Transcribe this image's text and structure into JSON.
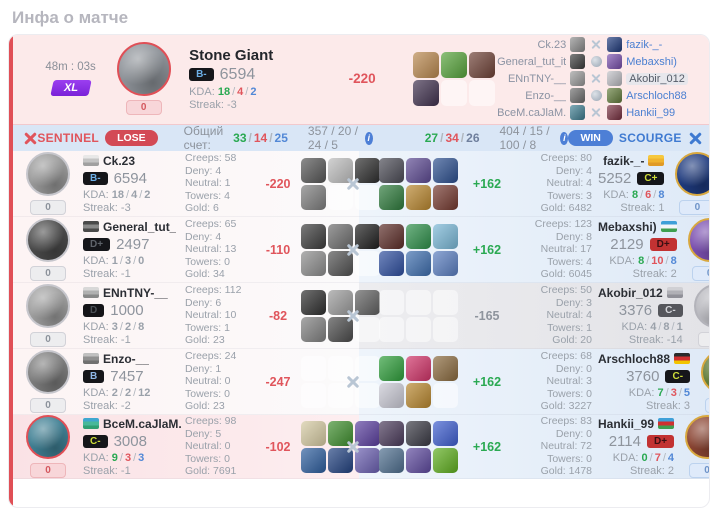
{
  "title": "Инфа о матче",
  "labels": {
    "kda": "KDA:",
    "streak": "Streak:"
  },
  "summary": {
    "duration": "48m : 03s",
    "mode": "XL",
    "games": "0",
    "hero_name": "Stone Giant",
    "avatar_color": "#8d9298",
    "ring": "#e04f56",
    "rank": "B-",
    "rank_color": "#6db0e8",
    "rank_bg": "#15161a",
    "mmr": "6594",
    "kda": [
      "18",
      "4",
      "2"
    ],
    "kda_colors": [
      "#2aa952",
      "#e0555c",
      "#5288d6"
    ],
    "streak": "-3",
    "networth": "-220",
    "networth_color": "#e0555c",
    "items": [
      "#b9884f",
      "#57a33b",
      "#6e4136",
      "#40314e",
      null,
      null
    ]
  },
  "mini": [
    {
      "left": "Ck.23",
      "lcolor": "#8e8e8e",
      "swords": true,
      "globe": false,
      "rcolor": "#1e3a7e",
      "right": "fazik-_-",
      "hl": ""
    },
    {
      "left": "General_tut_it",
      "lcolor": "#3c3c3c",
      "swords": false,
      "globe": true,
      "rcolor": "#7a4fb0",
      "right": "Mebaxshi)",
      "hl": ""
    },
    {
      "left": "ENnTNY-__",
      "lcolor": "#9c9c9c",
      "swords": true,
      "globe": false,
      "rcolor": "#c2c2c8",
      "right": "Akobir_012",
      "hl": "hl"
    },
    {
      "left": "Enzo-__",
      "lcolor": "#6e6e6e",
      "swords": false,
      "globe": true,
      "rcolor": "#647e3c",
      "right": "Arschloch88",
      "hl": ""
    },
    {
      "left": "BceM.caJlaM.",
      "lcolor": "#3f7f93",
      "swords": true,
      "globe": false,
      "rcolor": "#7a3040",
      "right": "Hankii_99",
      "hl": ""
    }
  ],
  "header": {
    "left_team": "SENTINEL",
    "left_result": "LOSE",
    "score_label": "Общий счет:",
    "left_kda": [
      "33",
      "14",
      "25"
    ],
    "left_extra": "357 / 20 / 24 / 5",
    "right_kda": [
      "27",
      "34",
      "26"
    ],
    "right_extra": "404 / 15 / 100 / 8",
    "right_result": "WIN",
    "right_team": "SCOURGE"
  },
  "rows": [
    {
      "left": {
        "tone": "",
        "name": "Ck.23",
        "flag": [
          "#e8e8e8",
          "#c4c4c4",
          "#a0a0a0"
        ],
        "avatar": "#9a9a9a",
        "ring": "#c6c6cc",
        "rank": "B-",
        "rank_color": "#6db0e8",
        "rank_bg": "#15161a",
        "mmr": "6594",
        "kda": [
          "18",
          "4",
          "2"
        ],
        "kda_colors": [
          "#9aa1aa",
          "#9aa1aa",
          "#9aa1aa"
        ],
        "streak": "-3",
        "games": "0",
        "pill": "pill-gray",
        "stats": [
          "Creeps: 58",
          "Deny: 4",
          "Neutral: 1",
          "Towers: 4",
          "Gold: 6"
        ],
        "net": "-220",
        "net_color": "#e0555c",
        "items": [
          "#565656",
          "#bdbdbd",
          "#2d2d2d",
          "#7d7d7d",
          null,
          null
        ]
      },
      "right": {
        "tone": "",
        "items": [
          "#4b4b55",
          "#5d4a92",
          "#2c4f8e",
          "#2e7a3c",
          "#b8862f",
          "#74392f"
        ],
        "net": "+162",
        "net_color": "#2aa952",
        "stats": [
          "Creeps: 80",
          "Deny: 4",
          "Neutral: 4",
          "Towers: 3",
          "Gold: 6482"
        ],
        "name": "fazik-_-",
        "flag": [
          "#f6c83e",
          "#f0b32e",
          "#e09a26"
        ],
        "rank": "C+",
        "rank_color": "#cddc39",
        "rank_bg": "#15161a",
        "mmr": "5252",
        "kda": [
          "8",
          "6",
          "8"
        ],
        "kda_colors": [
          "#2aa952",
          "#e0555c",
          "#5288d6"
        ],
        "streak": "1",
        "games": "0",
        "pill": "pill-blue",
        "avatar": "#1e3a7e",
        "ring": "#d8a83f"
      }
    },
    {
      "left": {
        "tone": "",
        "name": "General_tut_",
        "flag": [
          "#4a4a4a",
          "#8a8a8a",
          "#4a4a4a"
        ],
        "avatar": "#4a4a4a",
        "ring": "#c6c6cc",
        "rank": "D+",
        "rank_color": "#5f646b",
        "rank_bg": "#15161a",
        "mmr": "2497",
        "kda": [
          "1",
          "3",
          "0"
        ],
        "kda_colors": [
          "#9aa1aa",
          "#9aa1aa",
          "#9aa1aa"
        ],
        "streak": "-1",
        "games": "0",
        "pill": "pill-gray",
        "stats": [
          "Creeps: 65",
          "Deny: 4",
          "Neutral: 13",
          "Towers: 0",
          "Gold: 34"
        ],
        "net": "-110",
        "net_color": "#e0555c",
        "items": [
          "#3c3c3c",
          "#6d6d6d",
          "#1e1e1e",
          "#8c8c8c",
          "#515151",
          null
        ]
      },
      "right": {
        "tone": "",
        "items": [
          "#5c2d28",
          "#2e8f4a",
          "#79b7d6",
          "#2e4e9e",
          "#3e6eae",
          "#5a7ec0"
        ],
        "net": "+162",
        "net_color": "#2aa952",
        "stats": [
          "Creeps: 123",
          "Deny: 8",
          "Neutral: 17",
          "Towers: 4",
          "Gold: 6045"
        ],
        "name": "Mebaxshi)",
        "flag": [
          "#3fa0d8",
          "#f4f6f8",
          "#3f9f4f"
        ],
        "rank": "D+",
        "rank_color": "#3a0f12",
        "rank_bg": "#c23232",
        "mmr": "2129",
        "kda": [
          "8",
          "10",
          "8"
        ],
        "kda_colors": [
          "#2aa952",
          "#e0555c",
          "#5288d6"
        ],
        "streak": "2",
        "games": "0",
        "pill": "pill-blue",
        "avatar": "#7a4fb0",
        "ring": "#d8a83f"
      }
    },
    {
      "left": {
        "tone": "",
        "name": "ENnTNY-__",
        "flag": [
          "#d8d8d8",
          "#b0b0b0",
          "#888888"
        ],
        "avatar": "#9f9f9f",
        "ring": "#c6c6cc",
        "rank": "D",
        "rank_color": "#4a4f55",
        "rank_bg": "#141418",
        "mmr": "1000",
        "kda": [
          "3",
          "2",
          "8"
        ],
        "kda_colors": [
          "#9aa1aa",
          "#9aa1aa",
          "#9aa1aa"
        ],
        "streak": "-1",
        "games": "0",
        "pill": "pill-gray",
        "stats": [
          "Creeps: 112",
          "Deny: 6",
          "Neutral: 10",
          "Towers: 1",
          "Gold: 23"
        ],
        "net": "-82",
        "net_color": "#e0555c",
        "items": [
          "#2e2e2e",
          "#9b9b9b",
          "#606060",
          "#808080",
          "#4b4b4b",
          null
        ]
      },
      "right": {
        "tone": "tone-gray",
        "items": [
          null,
          null,
          null,
          null,
          null,
          null
        ],
        "net": "-165",
        "net_color": "#8e949d",
        "stats": [
          "Creeps: 50",
          "Deny: 3",
          "Neutral: 4",
          "Towers: 1",
          "Gold: 20"
        ],
        "name": "Akobir_012",
        "flag": [
          "#d0d0d4",
          "#b0b0b6",
          "#909098"
        ],
        "rank": "C-",
        "rank_color": "#d4d5da",
        "rank_bg": "#55565c",
        "mmr": "3376",
        "kda": [
          "4",
          "8",
          "1"
        ],
        "kda_colors": [
          "#9aa1aa",
          "#9aa1aa",
          "#9aa1aa"
        ],
        "streak": "-14",
        "games": "0",
        "pill": "pill-gray",
        "avatar": "#b9b9bf",
        "ring": "#b3b3ba"
      }
    },
    {
      "left": {
        "tone": "",
        "name": "Enzo-__",
        "flag": [
          "#c0c0c0",
          "#909090",
          "#707070"
        ],
        "avatar": "#7d7d7d",
        "ring": "#c6c6cc",
        "rank": "B",
        "rank_color": "#8fb8e8",
        "rank_bg": "#15161a",
        "mmr": "7457",
        "kda": [
          "2",
          "2",
          "12"
        ],
        "kda_colors": [
          "#9aa1aa",
          "#9aa1aa",
          "#9aa1aa"
        ],
        "streak": "-2",
        "games": "0",
        "pill": "pill-gray",
        "stats": [
          "Creeps: 24",
          "Deny: 1",
          "Neutral: 0",
          "Towers: 0",
          "Gold: 23"
        ],
        "net": "-247",
        "net_color": "#e0555c",
        "items": [
          null,
          null,
          null,
          null,
          null,
          null
        ]
      },
      "right": {
        "tone": "",
        "items": [
          "#2f9e3b",
          "#d03368",
          "#8a6a3e",
          "#c9c9d4",
          "#b8872f",
          null
        ],
        "net": "+162",
        "net_color": "#2aa952",
        "stats": [
          "Creeps: 68",
          "Deny: 0",
          "Neutral: 3",
          "Towers: 0",
          "Gold: 3227"
        ],
        "name": "Arschloch88",
        "flag": [
          "#2b2b2b",
          "#d03030",
          "#f2c500"
        ],
        "rank": "C-",
        "rank_color": "#cddc39",
        "rank_bg": "#15161a",
        "mmr": "3760",
        "kda": [
          "7",
          "3",
          "5"
        ],
        "kda_colors": [
          "#2aa952",
          "#e0555c",
          "#5288d6"
        ],
        "streak": "3",
        "games": "0",
        "pill": "pill-blue",
        "avatar": "#647e3c",
        "ring": "#d8a83f"
      }
    },
    {
      "left": {
        "tone": "tone-pink",
        "name": "BceM.caJlaM.",
        "flag": [
          "#3fa7cf",
          "#48b89a",
          "#2f9f72"
        ],
        "avatar": "#3f7f93",
        "ring": "#e04f56",
        "rank": "C-",
        "rank_color": "#cddc39",
        "rank_bg": "#15161a",
        "mmr": "3008",
        "kda": [
          "9",
          "3",
          "3"
        ],
        "kda_colors": [
          "#2aa952",
          "#e0555c",
          "#5288d6"
        ],
        "streak": "-1",
        "games": "0",
        "pill": "pill-pink",
        "stats": [
          "Creeps: 98",
          "Deny: 5",
          "Neutral: 0",
          "Towers: 0",
          "Gold: 7691"
        ],
        "net": "-102",
        "net_color": "#e0555c",
        "items": [
          "#d5caa2",
          "#3f8e2e",
          "#5a3f9e",
          "#2e5e9e",
          "#224280",
          "#6a5fb0"
        ]
      },
      "right": {
        "tone": "",
        "items": [
          "#4a3a5a",
          "#3a3a44",
          "#3e5ecf",
          "#4e6e8e",
          "#5e4a9e",
          "#5fae1f"
        ],
        "net": "+162",
        "net_color": "#2aa952",
        "stats": [
          "Creeps: 83",
          "Deny: 0",
          "Neutral: 72",
          "Towers: 0",
          "Gold: 1478"
        ],
        "name": "Hankii_99",
        "flag": [
          "#3fa0d8",
          "#d03030",
          "#3f9f4f"
        ],
        "rank": "D+",
        "rank_color": "#3a0f12",
        "rank_bg": "#c23232",
        "mmr": "2114",
        "kda": [
          "0",
          "7",
          "4"
        ],
        "kda_colors": [
          "#2aa952",
          "#e0555c",
          "#5288d6"
        ],
        "streak": "2",
        "games": "0",
        "pill": "pill-blue",
        "avatar": "#8a4432",
        "ring": "#d8a83f"
      }
    }
  ]
}
